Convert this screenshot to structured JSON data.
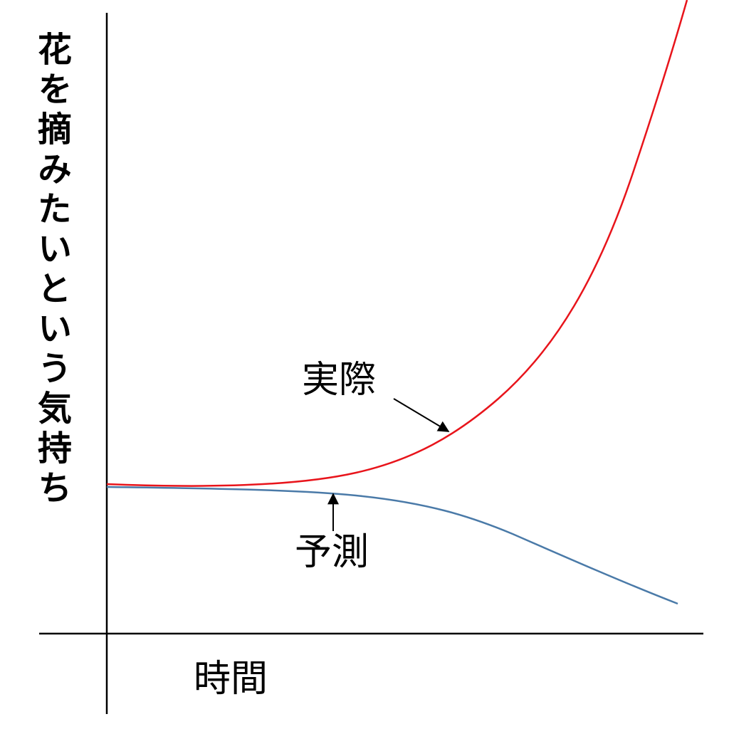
{
  "y_label": "花を摘みたいという気持ち",
  "x_label": "時間",
  "annotations": [
    "実際",
    "予測"
  ]
}
